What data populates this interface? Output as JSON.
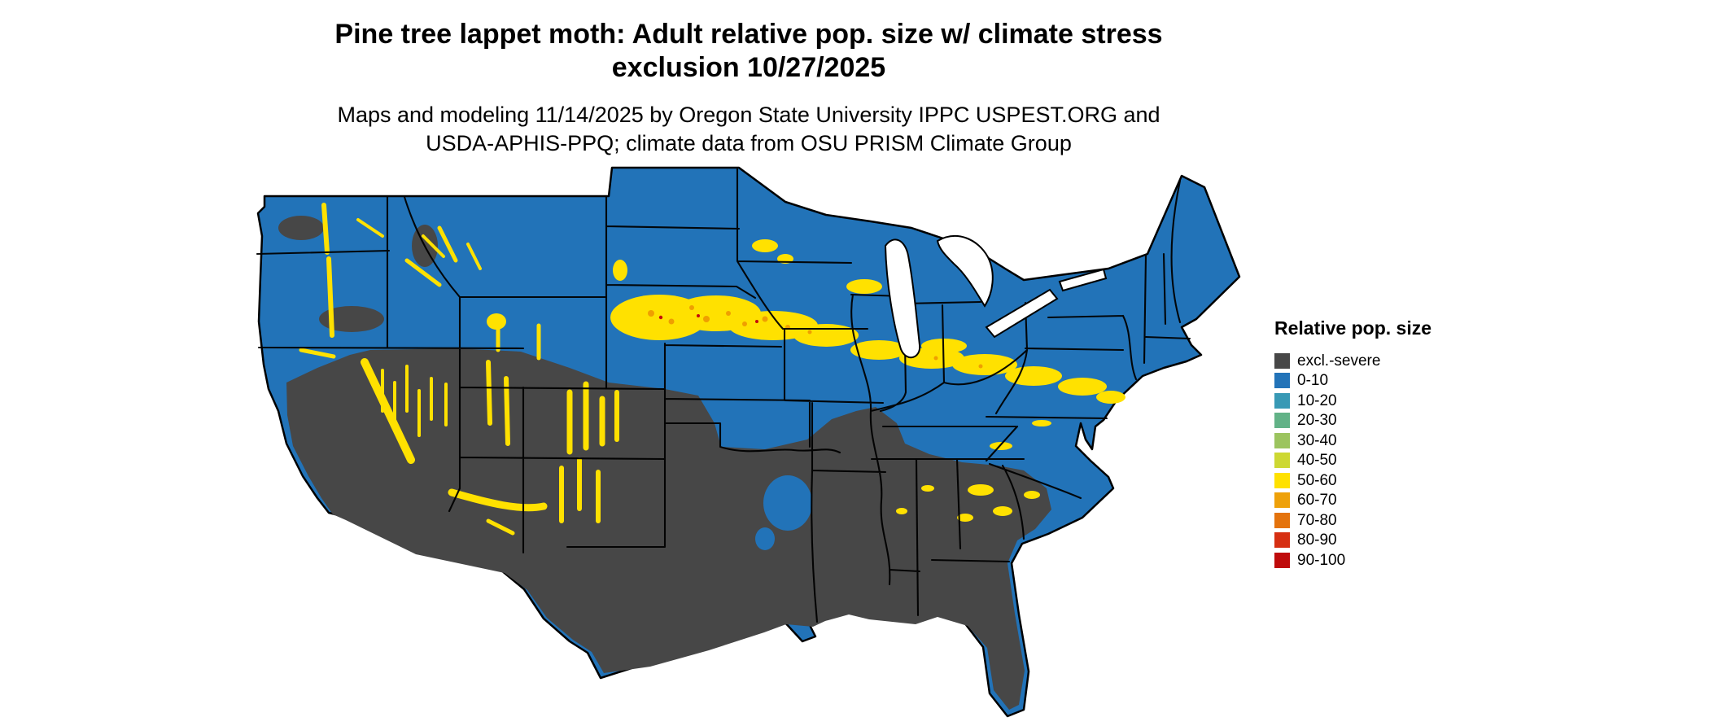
{
  "title": {
    "line1": "Pine tree lappet moth: Adult relative pop. size w/ climate stress",
    "line2": "exclusion 10/27/2025"
  },
  "subtitle": {
    "line1": "Maps and modeling 11/14/2025 by Oregon State University IPPC USPEST.ORG and",
    "line2": "USDA-APHIS-PPQ; climate data from OSU PRISM Climate Group"
  },
  "legend": {
    "title": "Relative pop. size",
    "items": [
      {
        "label": "excl.-severe",
        "color": "#474747"
      },
      {
        "label": "0-10",
        "color": "#2273b8"
      },
      {
        "label": "10-20",
        "color": "#3899b5"
      },
      {
        "label": "20-30",
        "color": "#62b287"
      },
      {
        "label": "30-40",
        "color": "#9cc45f"
      },
      {
        "label": "40-50",
        "color": "#cdd833"
      },
      {
        "label": "50-60",
        "color": "#ffe100"
      },
      {
        "label": "60-70",
        "color": "#eea10a"
      },
      {
        "label": "70-80",
        "color": "#e4730c"
      },
      {
        "label": "80-90",
        "color": "#d62f12"
      },
      {
        "label": "90-100",
        "color": "#bf0b0b"
      }
    ]
  },
  "map": {
    "region": "Continental United States",
    "base_color": "#2273b8",
    "excluded_color": "#474747",
    "band_color": "#ffe100",
    "orange_color": "#ef9f00",
    "red_color": "#c40a0a",
    "water_color": "#ffffff",
    "border_color": "#000000"
  }
}
